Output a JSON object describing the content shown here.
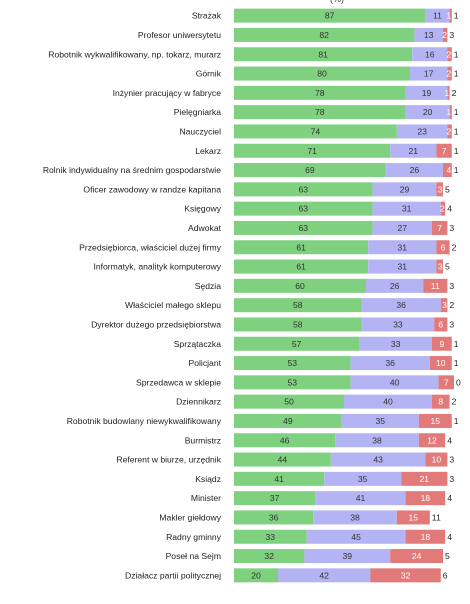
{
  "header_note": "(%)",
  "colors": {
    "green": "#7fd07f",
    "blue": "#b4b4f4",
    "red": "#e27a7a",
    "extra": "#ffffff"
  },
  "chart_data": {
    "type": "bar",
    "stacked": true,
    "orientation": "horizontal",
    "xlim": [
      0,
      100
    ],
    "categories": [
      "Strażak",
      "Profesor uniwersytetu",
      "Robotnik wykwalifikowany, np. tokarz, murarz",
      "Górnik",
      "Inżynier pracujący w fabryce",
      "Pielęgniarka",
      "Nauczyciel",
      "Lekarz",
      "Rolnik indywidualny na średnim gospodarstwie",
      "Oficer zawodowy w randze kapitana",
      "Księgowy",
      "Adwokat",
      "Przedsiębiorca, właściciel dużej firmy",
      "Informatyk, analityk komputerowy",
      "Sędzia",
      "Właściciel małego sklepu",
      "Dyrektor dużego przedsiębiorstwa",
      "Sprzątaczka",
      "Policjant",
      "Sprzedawca w sklepie",
      "Dziennikarz",
      "Robotnik budowlany niewykwalifikowany",
      "Burmistrz",
      "Referent w biurze, urzędnik",
      "Ksiądz",
      "Minister",
      "Makler giełdowy",
      "Radny gminny",
      "Poseł na Sejm",
      "Działacz partii politycznej"
    ],
    "series": [
      {
        "values": [
          87,
          82,
          81,
          80,
          78,
          78,
          74,
          71,
          69,
          63,
          63,
          63,
          61,
          61,
          60,
          58,
          58,
          57,
          53,
          53,
          50,
          49,
          46,
          44,
          41,
          37,
          36,
          33,
          32,
          20
        ]
      },
      {
        "values": [
          11,
          13,
          16,
          17,
          19,
          20,
          23,
          21,
          26,
          29,
          31,
          27,
          31,
          31,
          26,
          36,
          33,
          33,
          36,
          40,
          40,
          35,
          38,
          43,
          35,
          41,
          38,
          45,
          39,
          42
        ]
      },
      {
        "values": [
          1,
          2,
          2,
          2,
          1,
          1,
          2,
          7,
          4,
          3,
          2,
          7,
          6,
          3,
          11,
          3,
          6,
          9,
          10,
          7,
          8,
          15,
          12,
          10,
          21,
          18,
          15,
          18,
          24,
          32
        ]
      },
      {
        "values": [
          1,
          3,
          1,
          1,
          2,
          1,
          1,
          1,
          1,
          5,
          4,
          3,
          2,
          5,
          3,
          2,
          3,
          1,
          1,
          0,
          2,
          1,
          4,
          3,
          3,
          4,
          11,
          4,
          5,
          6
        ]
      }
    ]
  }
}
